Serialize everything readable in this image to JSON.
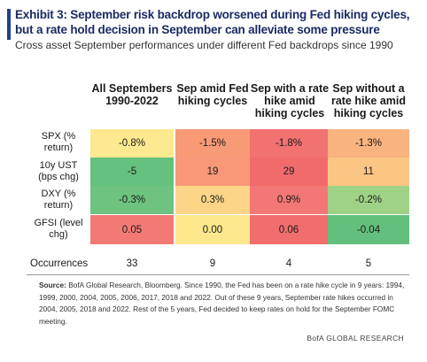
{
  "title": "Exhibit 3: September risk backdrop worsened during Fed hiking cycles, but a rate hold decision in September can alleviate some pressure",
  "subtitle": "Cross asset September performances under different Fed backdrops since 1990",
  "chart_data": {
    "type": "table",
    "title": "Exhibit 3: September risk backdrop worsened during Fed hiking cycles, but a rate hold decision in September can alleviate some pressure",
    "subtitle": "Cross asset September performances under different Fed backdrops since 1990",
    "columns": [
      "All Septembers 1990-2022",
      "Sep amid Fed hiking cycles",
      "Sep with a rate hike amid hiking cycles",
      "Sep without a rate hike amid hiking cycles"
    ],
    "rows": [
      {
        "label": "SPX (% return)",
        "values": [
          "-0.8%",
          "-1.5%",
          "-1.8%",
          "-1.3%"
        ],
        "colors": [
          "#fde98f",
          "#f89a76",
          "#f27171",
          "#f8b37f"
        ]
      },
      {
        "label": "10y UST (bps chg)",
        "values": [
          "-5",
          "19",
          "29",
          "11"
        ],
        "colors": [
          "#64c17e",
          "#f89879",
          "#f26b6b",
          "#fbc583"
        ]
      },
      {
        "label": "DXY (% return)",
        "values": [
          "-0.3%",
          "0.3%",
          "0.9%",
          "-0.2%"
        ],
        "colors": [
          "#6dc37f",
          "#fcd588",
          "#f37777",
          "#9fd186"
        ]
      },
      {
        "label": "GFSI (level chg)",
        "values": [
          "0.05",
          "0.00",
          "0.06",
          "-0.04"
        ],
        "colors": [
          "#f37a74",
          "#fde88d",
          "#f26d6d",
          "#63c07c"
        ]
      }
    ],
    "occurrences_label": "Occurrences",
    "occurrences": [
      "33",
      "9",
      "4",
      "5"
    ]
  },
  "source_label": "Source:",
  "source_text": "BofA Global Research, Bloomberg. Since 1990, the Fed has been on a rate hike cycle in 9 years: 1994, 1999, 2000, 2004, 2005, 2006, 2017, 2018 and 2022. Out of these 9 years, September rate hikes occurred in 2004, 2005, 2018 and 2022. Rest of the 5 years, Fed decided to keep rates on hold for the September FOMC meeting.",
  "footer": "BofA GLOBAL RESEARCH"
}
